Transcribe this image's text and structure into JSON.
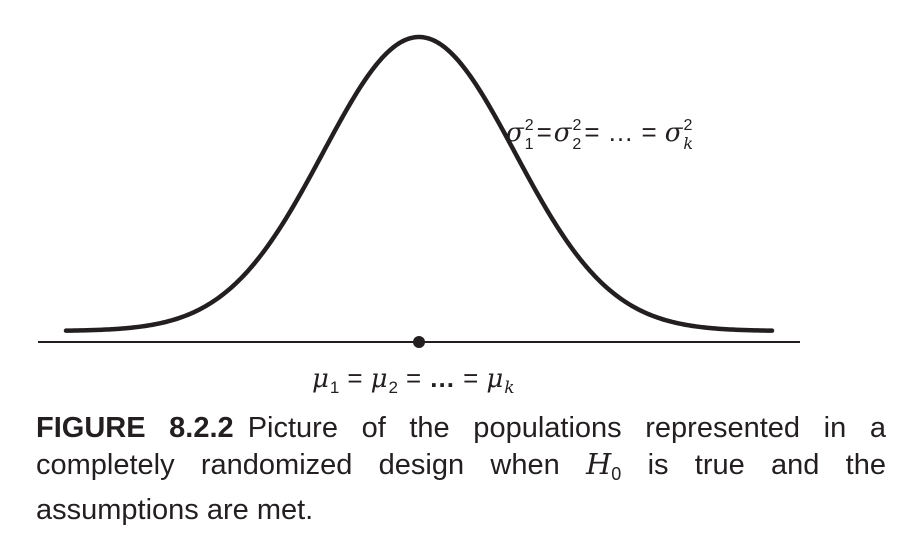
{
  "figure": {
    "variance_label": {
      "sigma": "σ",
      "sup": "2",
      "sub_1": "1",
      "sub_2": "2",
      "sub_k": "k",
      "eq": "=",
      "ellipsis": "…"
    },
    "mean_label": {
      "mu": "μ",
      "sub_1": "1",
      "sub_2": "2",
      "sub_k": "k",
      "eq": "=",
      "ellipsis": "…"
    },
    "colors": {
      "stroke": "#231f20"
    }
  },
  "caption": {
    "label": "FIGURE 8.2.2",
    "text_before": "Picture of the populations represented in a completely randomized design when ",
    "h_symbol": "H",
    "h_sub": "0",
    "text_after": " is true and the assumptions are met."
  }
}
